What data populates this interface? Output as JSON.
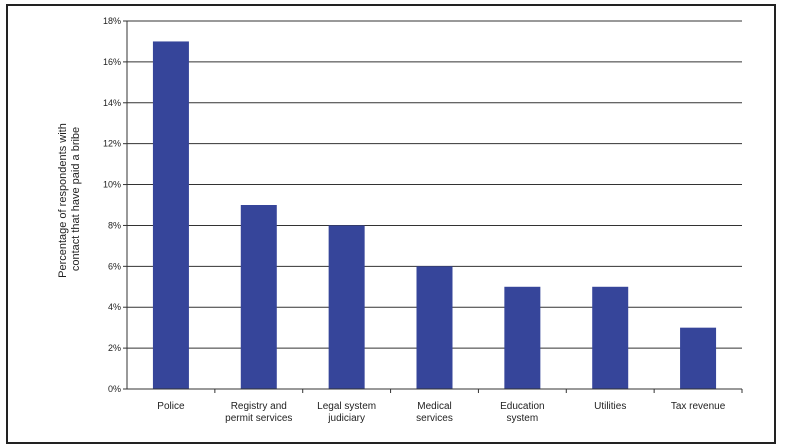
{
  "chart_data": {
    "type": "bar",
    "title": "",
    "xlabel": "",
    "ylabel_lines": [
      "Percentage of respondents with",
      "contact that have paid a bribe"
    ],
    "categories": [
      [
        "Police"
      ],
      [
        "Registry and",
        "permit services"
      ],
      [
        "Legal system",
        "judiciary"
      ],
      [
        "Medical",
        "services"
      ],
      [
        "Education",
        "system"
      ],
      [
        "Utilities"
      ],
      [
        "Tax revenue"
      ]
    ],
    "values": [
      17,
      9,
      8,
      6,
      5,
      5,
      3
    ],
    "ylim": [
      0,
      18
    ],
    "yticks": [
      0,
      2,
      4,
      6,
      8,
      10,
      12,
      14,
      16,
      18
    ],
    "ytick_suffix": "%",
    "grid": true,
    "bar_color": "#36459a",
    "grid_color": "#333333"
  }
}
